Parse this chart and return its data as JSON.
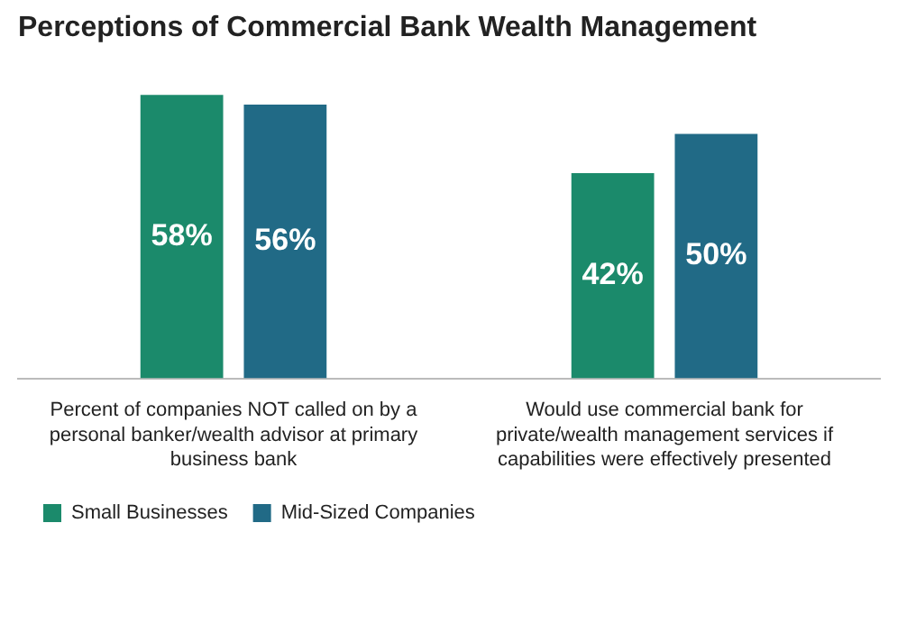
{
  "chart_data": {
    "type": "bar",
    "title": "Perceptions of Commercial Bank Wealth Management",
    "categories": [
      "Percent of companies NOT called on by a personal banker/wealth advisor at primary business bank",
      "Would use commercial bank for private/wealth management services if capabilities were effectively presented"
    ],
    "series": [
      {
        "name": "Small Businesses",
        "color": "#1b8a6b",
        "values": [
          58,
          42
        ],
        "value_labels": [
          "58%",
          "42%"
        ]
      },
      {
        "name": "Mid-Sized Companies",
        "color": "#216a86",
        "values": [
          56,
          50
        ],
        "value_labels": [
          "56%",
          "50%"
        ]
      }
    ],
    "legend": "bottom left"
  }
}
